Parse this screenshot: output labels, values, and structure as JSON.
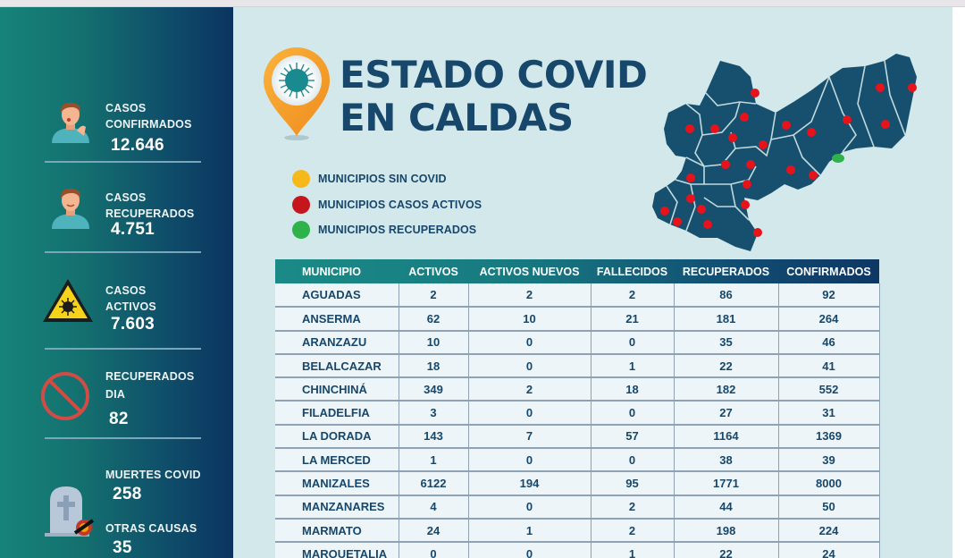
{
  "header": {
    "title_line1": "ESTADO COVID",
    "title_line2": "EN CALDAS",
    "pin_icon": "location-pin-virus-icon"
  },
  "sidebar": {
    "stats": [
      {
        "label_line1": "CASOS",
        "label_line2": "CONFIRMADOS",
        "value": "12.646",
        "icon": "coughing-person-icon"
      },
      {
        "label_line1": "CASOS",
        "label_line2": "RECUPERADOS",
        "value": "4.751",
        "icon": "healthy-person-icon"
      },
      {
        "label_line1": "CASOS",
        "label_line2": "ACTIVOS",
        "value": "7.603",
        "icon": "biohazard-warning-icon"
      },
      {
        "label_line1": "RECUPERADOS",
        "label_line2": "DIA",
        "value": "82",
        "icon": "prohibited-icon"
      },
      {
        "label_line1": "MUERTES COVID",
        "value": "258",
        "icon": "tombstone-icon"
      },
      {
        "label_line1": "OTRAS CAUSAS",
        "value": "35",
        "icon": "other-causes-icon"
      }
    ]
  },
  "legend": {
    "items": [
      {
        "label": "MUNICIPIOS SIN COVID",
        "color": "#f6b81a"
      },
      {
        "label": "MUNICIPIOS CASOS ACTIVOS",
        "color": "#c4161c"
      },
      {
        "label": "MUNICIPIOS RECUPERADOS",
        "color": "#2db34a"
      }
    ]
  },
  "map": {
    "region": "Caldas",
    "fill_color": "#17506e",
    "active_marker_color": "#e8121b",
    "recovered_marker_color": "#2db34a",
    "active_markers": 26,
    "recovered_markers": 1
  },
  "colors": {
    "title": "#17476b",
    "sidebar_start": "#168379",
    "sidebar_end": "#0b3460",
    "background": "#d3e8ea"
  },
  "table": {
    "columns": [
      "MUNICIPIO",
      "ACTIVOS",
      "ACTIVOS NUEVOS",
      "FALLECIDOS",
      "RECUPERADOS",
      "CONFIRMADOS"
    ],
    "rows": [
      [
        "AGUADAS",
        "2",
        "2",
        "2",
        "86",
        "92"
      ],
      [
        "ANSERMA",
        "62",
        "10",
        "21",
        "181",
        "264"
      ],
      [
        "ARANZAZU",
        "10",
        "0",
        "0",
        "35",
        "46"
      ],
      [
        "BELALCAZAR",
        "18",
        "0",
        "1",
        "22",
        "41"
      ],
      [
        "CHINCHINÁ",
        "349",
        "2",
        "18",
        "182",
        "552"
      ],
      [
        "FILADELFIA",
        "3",
        "0",
        "0",
        "27",
        "31"
      ],
      [
        "LA DORADA",
        "143",
        "7",
        "57",
        "1164",
        "1369"
      ],
      [
        "LA MERCED",
        "1",
        "0",
        "0",
        "38",
        "39"
      ],
      [
        "MANIZALES",
        "6122",
        "194",
        "95",
        "1771",
        "8000"
      ],
      [
        "MANZANARES",
        "4",
        "0",
        "2",
        "44",
        "50"
      ],
      [
        "MARMATO",
        "24",
        "1",
        "2",
        "198",
        "224"
      ],
      [
        "MARQUETALIA",
        "0",
        "0",
        "1",
        "22",
        "24"
      ]
    ]
  }
}
